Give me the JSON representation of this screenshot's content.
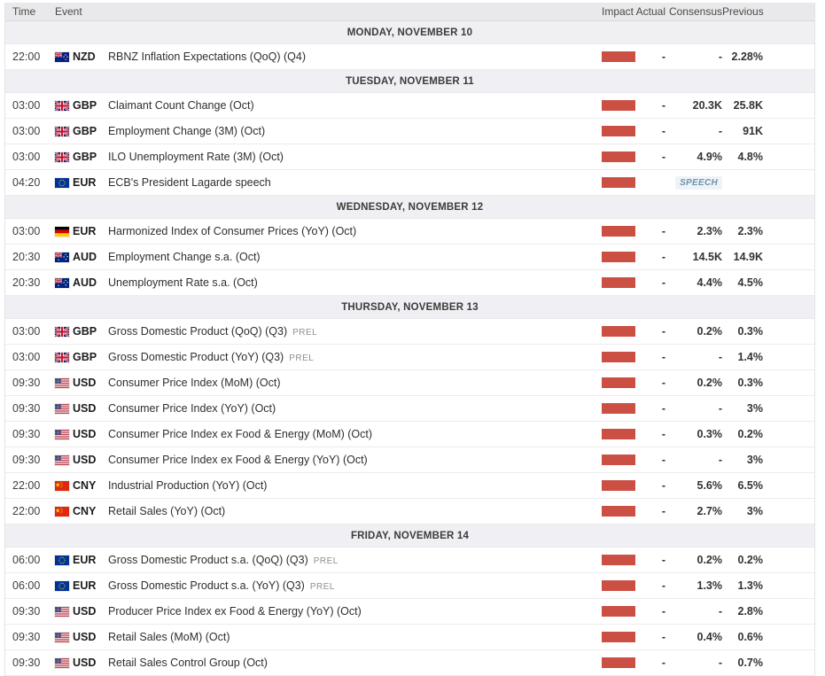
{
  "table": {
    "impact_color": "#cc4f44",
    "columns": {
      "time": "Time",
      "event": "Event",
      "impact": "Impact",
      "actual": "Actual",
      "consensus": "Consensus",
      "previous": "Previous"
    },
    "days": [
      {
        "label": "MONDAY, NOVEMBER 10",
        "events": [
          {
            "time": "22:00",
            "currency": "NZD",
            "flag": "nz",
            "name": "RBNZ Inflation Expectations (QoQ) (Q4)",
            "tag": "",
            "impact": "high",
            "actual": "-",
            "consensus": "-",
            "previous": "2.28%"
          }
        ]
      },
      {
        "label": "TUESDAY, NOVEMBER 11",
        "events": [
          {
            "time": "03:00",
            "currency": "GBP",
            "flag": "uk",
            "name": "Claimant Count Change (Oct)",
            "tag": "",
            "impact": "high",
            "actual": "-",
            "consensus": "20.3K",
            "previous": "25.8K"
          },
          {
            "time": "03:00",
            "currency": "GBP",
            "flag": "uk",
            "name": "Employment Change (3M) (Oct)",
            "tag": "",
            "impact": "high",
            "actual": "-",
            "consensus": "-",
            "previous": "91K"
          },
          {
            "time": "03:00",
            "currency": "GBP",
            "flag": "uk",
            "name": "ILO Unemployment Rate (3M) (Oct)",
            "tag": "",
            "impact": "high",
            "actual": "-",
            "consensus": "4.9%",
            "previous": "4.8%"
          },
          {
            "time": "04:20",
            "currency": "EUR",
            "flag": "eu",
            "name": "ECB's President Lagarde speech",
            "tag": "",
            "impact": "high",
            "badge": "SPEECH",
            "actual": "",
            "consensus": "",
            "previous": ""
          }
        ]
      },
      {
        "label": "WEDNESDAY, NOVEMBER 12",
        "events": [
          {
            "time": "03:00",
            "currency": "EUR",
            "flag": "de",
            "name": "Harmonized Index of Consumer Prices (YoY) (Oct)",
            "tag": "",
            "impact": "high",
            "actual": "-",
            "consensus": "2.3%",
            "previous": "2.3%"
          },
          {
            "time": "20:30",
            "currency": "AUD",
            "flag": "au",
            "name": "Employment Change s.a. (Oct)",
            "tag": "",
            "impact": "high",
            "actual": "-",
            "consensus": "14.5K",
            "previous": "14.9K"
          },
          {
            "time": "20:30",
            "currency": "AUD",
            "flag": "au",
            "name": "Unemployment Rate s.a. (Oct)",
            "tag": "",
            "impact": "high",
            "actual": "-",
            "consensus": "4.4%",
            "previous": "4.5%"
          }
        ]
      },
      {
        "label": "THURSDAY, NOVEMBER 13",
        "events": [
          {
            "time": "03:00",
            "currency": "GBP",
            "flag": "uk",
            "name": "Gross Domestic Product (QoQ) (Q3)",
            "tag": "PREL",
            "impact": "high",
            "actual": "-",
            "consensus": "0.2%",
            "previous": "0.3%"
          },
          {
            "time": "03:00",
            "currency": "GBP",
            "flag": "uk",
            "name": "Gross Domestic Product (YoY) (Q3)",
            "tag": "PREL",
            "impact": "high",
            "actual": "-",
            "consensus": "-",
            "previous": "1.4%"
          },
          {
            "time": "09:30",
            "currency": "USD",
            "flag": "us",
            "name": "Consumer Price Index (MoM) (Oct)",
            "tag": "",
            "impact": "high",
            "actual": "-",
            "consensus": "0.2%",
            "previous": "0.3%"
          },
          {
            "time": "09:30",
            "currency": "USD",
            "flag": "us",
            "name": "Consumer Price Index (YoY) (Oct)",
            "tag": "",
            "impact": "high",
            "actual": "-",
            "consensus": "-",
            "previous": "3%"
          },
          {
            "time": "09:30",
            "currency": "USD",
            "flag": "us",
            "name": "Consumer Price Index ex Food & Energy (MoM) (Oct)",
            "tag": "",
            "impact": "high",
            "actual": "-",
            "consensus": "0.3%",
            "previous": "0.2%"
          },
          {
            "time": "09:30",
            "currency": "USD",
            "flag": "us",
            "name": "Consumer Price Index ex Food & Energy (YoY) (Oct)",
            "tag": "",
            "impact": "high",
            "actual": "-",
            "consensus": "-",
            "previous": "3%"
          },
          {
            "time": "22:00",
            "currency": "CNY",
            "flag": "cn",
            "name": "Industrial Production (YoY) (Oct)",
            "tag": "",
            "impact": "high",
            "actual": "-",
            "consensus": "5.6%",
            "previous": "6.5%"
          },
          {
            "time": "22:00",
            "currency": "CNY",
            "flag": "cn",
            "name": "Retail Sales (YoY) (Oct)",
            "tag": "",
            "impact": "high",
            "actual": "-",
            "consensus": "2.7%",
            "previous": "3%"
          }
        ]
      },
      {
        "label": "FRIDAY, NOVEMBER 14",
        "events": [
          {
            "time": "06:00",
            "currency": "EUR",
            "flag": "eu",
            "name": "Gross Domestic Product s.a. (QoQ) (Q3)",
            "tag": "PREL",
            "impact": "high",
            "actual": "-",
            "consensus": "0.2%",
            "previous": "0.2%"
          },
          {
            "time": "06:00",
            "currency": "EUR",
            "flag": "eu",
            "name": "Gross Domestic Product s.a. (YoY) (Q3)",
            "tag": "PREL",
            "impact": "high",
            "actual": "-",
            "consensus": "1.3%",
            "previous": "1.3%"
          },
          {
            "time": "09:30",
            "currency": "USD",
            "flag": "us",
            "name": "Producer Price Index ex Food & Energy (YoY) (Oct)",
            "tag": "",
            "impact": "high",
            "actual": "-",
            "consensus": "-",
            "previous": "2.8%"
          },
          {
            "time": "09:30",
            "currency": "USD",
            "flag": "us",
            "name": "Retail Sales (MoM) (Oct)",
            "tag": "",
            "impact": "high",
            "actual": "-",
            "consensus": "0.4%",
            "previous": "0.6%"
          },
          {
            "time": "09:30",
            "currency": "USD",
            "flag": "us",
            "name": "Retail Sales Control Group (Oct)",
            "tag": "",
            "impact": "high",
            "actual": "-",
            "consensus": "-",
            "previous": "0.7%"
          }
        ]
      }
    ]
  }
}
